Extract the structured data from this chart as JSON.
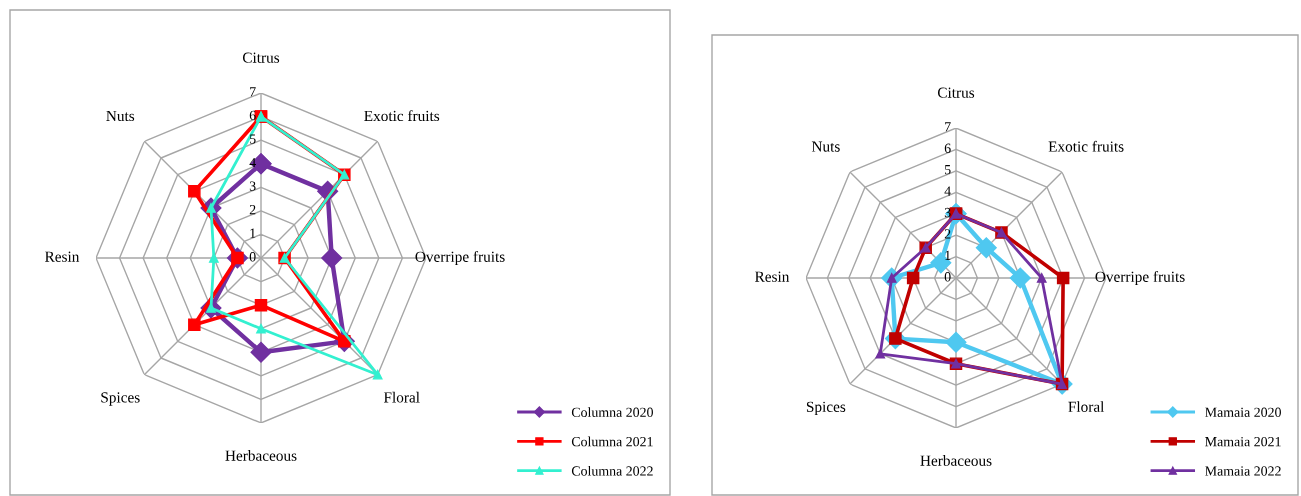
{
  "chart_data": [
    {
      "type": "radar",
      "categories": [
        "Citrus",
        "Exotic fruits",
        "Overripe fruits",
        "Floral",
        "Herbaceous",
        "Spices",
        "Resin",
        "Nuts"
      ],
      "ylim": [
        0,
        7
      ],
      "yticks": [
        0,
        1,
        2,
        3,
        4,
        5,
        6,
        7
      ],
      "grid": true,
      "legend": "bottom right",
      "series": [
        {
          "name": "Columna 2020",
          "color": "#7030a0",
          "marker": "diamond",
          "values": [
            4,
            4,
            3,
            5,
            4,
            3,
            1,
            3
          ]
        },
        {
          "name": "Columna 2021",
          "color": "#ff0000",
          "marker": "square",
          "values": [
            6,
            5,
            1,
            5,
            2,
            4,
            1,
            4
          ]
        },
        {
          "name": "Columna 2022",
          "color": "#33f0d0",
          "marker": "triangle",
          "values": [
            6,
            5,
            1,
            7,
            3,
            3,
            2,
            3
          ]
        }
      ]
    },
    {
      "type": "radar",
      "categories": [
        "Citrus",
        "Exotic fruits",
        "Overripe fruits",
        "Floral",
        "Herbaceous",
        "Spices",
        "Resin",
        "Nuts"
      ],
      "ylim": [
        0,
        7
      ],
      "yticks": [
        0,
        1,
        2,
        3,
        4,
        5,
        6,
        7
      ],
      "grid": true,
      "legend": "bottom right",
      "series": [
        {
          "name": "Mamaia 2020",
          "color": "#4fc8f0",
          "marker": "diamond",
          "values": [
            3,
            2,
            3,
            7,
            3,
            4,
            3,
            1
          ]
        },
        {
          "name": "Mamaia 2021",
          "color": "#c00000",
          "marker": "square",
          "values": [
            3,
            3,
            5,
            7,
            4,
            4,
            2,
            2
          ]
        },
        {
          "name": "Mamaia 2022",
          "color": "#7030a0",
          "marker": "triangle",
          "values": [
            3,
            3,
            4,
            7,
            4,
            5,
            3,
            2
          ]
        }
      ]
    }
  ]
}
